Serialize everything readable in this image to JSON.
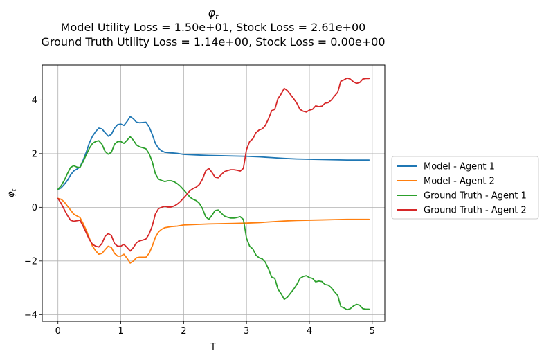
{
  "chart_data": {
    "type": "line",
    "title": "φt",
    "title_symbol": "φ",
    "title_subscript": "t",
    "subtitle_lines": [
      "Model Utility Loss = 1.50e+01, Stock Loss = 2.61e+00",
      "Ground Truth Utility Loss = 1.14e+00, Stock Loss = 0.00e+00"
    ],
    "xlabel": "T",
    "ylabel": "φt",
    "ylabel_symbol": "φ",
    "ylabel_subscript": "t",
    "xlim": [
      -0.25,
      5.2
    ],
    "ylim": [
      -4.25,
      5.3
    ],
    "xticks": [
      0,
      1,
      2,
      3,
      4,
      5
    ],
    "yticks": [
      -4,
      -2,
      0,
      2,
      4
    ],
    "xtick_labels": [
      "0",
      "1",
      "2",
      "3",
      "4",
      "5"
    ],
    "ytick_labels": [
      "−4",
      "−2",
      "0",
      "2",
      "4"
    ],
    "grid": true,
    "legend_placement": "center-right outside",
    "series": [
      {
        "name": "Model - Agent 1",
        "color": "#1f77b4",
        "points": [
          [
            0,
            0.67
          ],
          [
            0.05,
            0.72
          ],
          [
            0.1,
            0.85
          ],
          [
            0.15,
            1.0
          ],
          [
            0.2,
            1.2
          ],
          [
            0.25,
            1.35
          ],
          [
            0.3,
            1.42
          ],
          [
            0.35,
            1.5
          ],
          [
            0.4,
            1.75
          ],
          [
            0.45,
            2.05
          ],
          [
            0.5,
            2.4
          ],
          [
            0.55,
            2.65
          ],
          [
            0.6,
            2.82
          ],
          [
            0.65,
            2.95
          ],
          [
            0.7,
            2.92
          ],
          [
            0.75,
            2.78
          ],
          [
            0.8,
            2.65
          ],
          [
            0.85,
            2.72
          ],
          [
            0.9,
            2.95
          ],
          [
            0.95,
            3.08
          ],
          [
            1.0,
            3.1
          ],
          [
            1.05,
            3.05
          ],
          [
            1.1,
            3.2
          ],
          [
            1.15,
            3.38
          ],
          [
            1.2,
            3.3
          ],
          [
            1.25,
            3.17
          ],
          [
            1.3,
            3.15
          ],
          [
            1.35,
            3.16
          ],
          [
            1.4,
            3.17
          ],
          [
            1.45,
            3.0
          ],
          [
            1.5,
            2.72
          ],
          [
            1.55,
            2.38
          ],
          [
            1.6,
            2.2
          ],
          [
            1.65,
            2.1
          ],
          [
            1.7,
            2.05
          ],
          [
            1.8,
            2.03
          ],
          [
            1.9,
            2.01
          ],
          [
            2.0,
            1.97
          ],
          [
            2.2,
            1.95
          ],
          [
            2.4,
            1.93
          ],
          [
            2.6,
            1.92
          ],
          [
            2.8,
            1.91
          ],
          [
            3.0,
            1.9
          ],
          [
            3.2,
            1.88
          ],
          [
            3.4,
            1.85
          ],
          [
            3.6,
            1.82
          ],
          [
            3.8,
            1.8
          ],
          [
            4.0,
            1.79
          ],
          [
            4.2,
            1.78
          ],
          [
            4.4,
            1.77
          ],
          [
            4.6,
            1.76
          ],
          [
            4.8,
            1.76
          ],
          [
            4.95,
            1.76
          ]
        ]
      },
      {
        "name": "Model - Agent 2",
        "color": "#ff7f0e",
        "points": [
          [
            0,
            0.33
          ],
          [
            0.05,
            0.3
          ],
          [
            0.1,
            0.2
          ],
          [
            0.15,
            0.05
          ],
          [
            0.2,
            -0.1
          ],
          [
            0.25,
            -0.25
          ],
          [
            0.3,
            -0.32
          ],
          [
            0.35,
            -0.38
          ],
          [
            0.4,
            -0.6
          ],
          [
            0.45,
            -0.85
          ],
          [
            0.5,
            -1.15
          ],
          [
            0.55,
            -1.45
          ],
          [
            0.6,
            -1.62
          ],
          [
            0.65,
            -1.75
          ],
          [
            0.7,
            -1.72
          ],
          [
            0.75,
            -1.58
          ],
          [
            0.8,
            -1.45
          ],
          [
            0.85,
            -1.5
          ],
          [
            0.9,
            -1.72
          ],
          [
            0.95,
            -1.82
          ],
          [
            1.0,
            -1.82
          ],
          [
            1.05,
            -1.75
          ],
          [
            1.1,
            -1.9
          ],
          [
            1.15,
            -2.08
          ],
          [
            1.2,
            -2.0
          ],
          [
            1.25,
            -1.88
          ],
          [
            1.3,
            -1.86
          ],
          [
            1.35,
            -1.86
          ],
          [
            1.4,
            -1.86
          ],
          [
            1.45,
            -1.72
          ],
          [
            1.5,
            -1.45
          ],
          [
            1.55,
            -1.12
          ],
          [
            1.6,
            -0.92
          ],
          [
            1.65,
            -0.82
          ],
          [
            1.7,
            -0.76
          ],
          [
            1.8,
            -0.72
          ],
          [
            1.9,
            -0.7
          ],
          [
            2.0,
            -0.66
          ],
          [
            2.2,
            -0.64
          ],
          [
            2.4,
            -0.62
          ],
          [
            2.6,
            -0.61
          ],
          [
            2.8,
            -0.6
          ],
          [
            3.0,
            -0.59
          ],
          [
            3.2,
            -0.57
          ],
          [
            3.4,
            -0.54
          ],
          [
            3.6,
            -0.51
          ],
          [
            3.8,
            -0.49
          ],
          [
            4.0,
            -0.48
          ],
          [
            4.2,
            -0.47
          ],
          [
            4.4,
            -0.46
          ],
          [
            4.6,
            -0.45
          ],
          [
            4.8,
            -0.45
          ],
          [
            4.95,
            -0.45
          ]
        ]
      },
      {
        "name": "Ground Truth - Agent 1",
        "color": "#2ca02c",
        "points": [
          [
            0,
            0.67
          ],
          [
            0.05,
            0.8
          ],
          [
            0.1,
            1.0
          ],
          [
            0.15,
            1.25
          ],
          [
            0.2,
            1.48
          ],
          [
            0.25,
            1.55
          ],
          [
            0.3,
            1.5
          ],
          [
            0.35,
            1.48
          ],
          [
            0.4,
            1.7
          ],
          [
            0.45,
            1.95
          ],
          [
            0.5,
            2.2
          ],
          [
            0.55,
            2.38
          ],
          [
            0.6,
            2.45
          ],
          [
            0.65,
            2.48
          ],
          [
            0.7,
            2.35
          ],
          [
            0.75,
            2.08
          ],
          [
            0.8,
            1.98
          ],
          [
            0.85,
            2.05
          ],
          [
            0.9,
            2.35
          ],
          [
            0.95,
            2.45
          ],
          [
            1.0,
            2.45
          ],
          [
            1.05,
            2.38
          ],
          [
            1.1,
            2.5
          ],
          [
            1.15,
            2.63
          ],
          [
            1.2,
            2.5
          ],
          [
            1.25,
            2.32
          ],
          [
            1.3,
            2.25
          ],
          [
            1.35,
            2.22
          ],
          [
            1.4,
            2.18
          ],
          [
            1.45,
            2.0
          ],
          [
            1.5,
            1.7
          ],
          [
            1.55,
            1.25
          ],
          [
            1.6,
            1.05
          ],
          [
            1.65,
            1.0
          ],
          [
            1.7,
            0.96
          ],
          [
            1.75,
            0.99
          ],
          [
            1.8,
            0.99
          ],
          [
            1.85,
            0.95
          ],
          [
            1.9,
            0.88
          ],
          [
            1.95,
            0.78
          ],
          [
            2.0,
            0.65
          ],
          [
            2.05,
            0.52
          ],
          [
            2.1,
            0.38
          ],
          [
            2.15,
            0.3
          ],
          [
            2.2,
            0.25
          ],
          [
            2.25,
            0.15
          ],
          [
            2.3,
            -0.05
          ],
          [
            2.35,
            -0.35
          ],
          [
            2.4,
            -0.45
          ],
          [
            2.45,
            -0.3
          ],
          [
            2.5,
            -0.12
          ],
          [
            2.55,
            -0.1
          ],
          [
            2.6,
            -0.22
          ],
          [
            2.65,
            -0.33
          ],
          [
            2.7,
            -0.37
          ],
          [
            2.75,
            -0.4
          ],
          [
            2.8,
            -0.4
          ],
          [
            2.85,
            -0.38
          ],
          [
            2.9,
            -0.35
          ],
          [
            2.95,
            -0.45
          ],
          [
            3.0,
            -1.15
          ],
          [
            3.05,
            -1.45
          ],
          [
            3.1,
            -1.55
          ],
          [
            3.15,
            -1.78
          ],
          [
            3.2,
            -1.88
          ],
          [
            3.25,
            -1.92
          ],
          [
            3.3,
            -2.05
          ],
          [
            3.35,
            -2.3
          ],
          [
            3.4,
            -2.6
          ],
          [
            3.45,
            -2.65
          ],
          [
            3.5,
            -3.05
          ],
          [
            3.55,
            -3.22
          ],
          [
            3.6,
            -3.43
          ],
          [
            3.65,
            -3.35
          ],
          [
            3.7,
            -3.2
          ],
          [
            3.75,
            -3.05
          ],
          [
            3.8,
            -2.88
          ],
          [
            3.85,
            -2.65
          ],
          [
            3.9,
            -2.58
          ],
          [
            3.95,
            -2.55
          ],
          [
            4.0,
            -2.62
          ],
          [
            4.05,
            -2.65
          ],
          [
            4.1,
            -2.78
          ],
          [
            4.15,
            -2.75
          ],
          [
            4.2,
            -2.77
          ],
          [
            4.25,
            -2.88
          ],
          [
            4.3,
            -2.9
          ],
          [
            4.35,
            -3.0
          ],
          [
            4.4,
            -3.15
          ],
          [
            4.45,
            -3.28
          ],
          [
            4.5,
            -3.7
          ],
          [
            4.55,
            -3.75
          ],
          [
            4.6,
            -3.82
          ],
          [
            4.65,
            -3.78
          ],
          [
            4.7,
            -3.68
          ],
          [
            4.75,
            -3.62
          ],
          [
            4.8,
            -3.65
          ],
          [
            4.85,
            -3.78
          ],
          [
            4.9,
            -3.8
          ],
          [
            4.95,
            -3.8
          ]
        ]
      },
      {
        "name": "Ground Truth - Agent 2",
        "color": "#d62728",
        "points": [
          [
            0,
            0.33
          ],
          [
            0.05,
            0.15
          ],
          [
            0.1,
            -0.08
          ],
          [
            0.15,
            -0.3
          ],
          [
            0.2,
            -0.48
          ],
          [
            0.25,
            -0.52
          ],
          [
            0.3,
            -0.5
          ],
          [
            0.35,
            -0.48
          ],
          [
            0.4,
            -0.7
          ],
          [
            0.45,
            -0.95
          ],
          [
            0.5,
            -1.2
          ],
          [
            0.55,
            -1.38
          ],
          [
            0.6,
            -1.45
          ],
          [
            0.65,
            -1.48
          ],
          [
            0.7,
            -1.35
          ],
          [
            0.75,
            -1.08
          ],
          [
            0.8,
            -0.98
          ],
          [
            0.85,
            -1.05
          ],
          [
            0.9,
            -1.35
          ],
          [
            0.95,
            -1.45
          ],
          [
            1.0,
            -1.45
          ],
          [
            1.05,
            -1.38
          ],
          [
            1.1,
            -1.5
          ],
          [
            1.15,
            -1.63
          ],
          [
            1.2,
            -1.5
          ],
          [
            1.25,
            -1.32
          ],
          [
            1.3,
            -1.25
          ],
          [
            1.35,
            -1.22
          ],
          [
            1.4,
            -1.18
          ],
          [
            1.45,
            -1.0
          ],
          [
            1.5,
            -0.7
          ],
          [
            1.55,
            -0.25
          ],
          [
            1.6,
            -0.05
          ],
          [
            1.65,
            0.0
          ],
          [
            1.7,
            0.04
          ],
          [
            1.75,
            0.01
          ],
          [
            1.8,
            0.01
          ],
          [
            1.85,
            0.05
          ],
          [
            1.9,
            0.12
          ],
          [
            1.95,
            0.22
          ],
          [
            2.0,
            0.35
          ],
          [
            2.05,
            0.48
          ],
          [
            2.1,
            0.62
          ],
          [
            2.15,
            0.7
          ],
          [
            2.2,
            0.75
          ],
          [
            2.25,
            0.85
          ],
          [
            2.3,
            1.05
          ],
          [
            2.35,
            1.35
          ],
          [
            2.4,
            1.45
          ],
          [
            2.45,
            1.3
          ],
          [
            2.5,
            1.12
          ],
          [
            2.55,
            1.1
          ],
          [
            2.6,
            1.22
          ],
          [
            2.65,
            1.33
          ],
          [
            2.7,
            1.37
          ],
          [
            2.75,
            1.4
          ],
          [
            2.8,
            1.4
          ],
          [
            2.85,
            1.38
          ],
          [
            2.9,
            1.35
          ],
          [
            2.95,
            1.45
          ],
          [
            3.0,
            2.15
          ],
          [
            3.05,
            2.45
          ],
          [
            3.1,
            2.55
          ],
          [
            3.15,
            2.78
          ],
          [
            3.2,
            2.88
          ],
          [
            3.25,
            2.92
          ],
          [
            3.3,
            3.05
          ],
          [
            3.35,
            3.3
          ],
          [
            3.4,
            3.6
          ],
          [
            3.45,
            3.65
          ],
          [
            3.5,
            4.05
          ],
          [
            3.55,
            4.22
          ],
          [
            3.6,
            4.43
          ],
          [
            3.65,
            4.35
          ],
          [
            3.7,
            4.2
          ],
          [
            3.75,
            4.05
          ],
          [
            3.8,
            3.88
          ],
          [
            3.85,
            3.65
          ],
          [
            3.9,
            3.58
          ],
          [
            3.95,
            3.55
          ],
          [
            4.0,
            3.62
          ],
          [
            4.05,
            3.65
          ],
          [
            4.1,
            3.78
          ],
          [
            4.15,
            3.75
          ],
          [
            4.2,
            3.77
          ],
          [
            4.25,
            3.88
          ],
          [
            4.3,
            3.9
          ],
          [
            4.35,
            4.0
          ],
          [
            4.4,
            4.15
          ],
          [
            4.45,
            4.28
          ],
          [
            4.5,
            4.7
          ],
          [
            4.55,
            4.75
          ],
          [
            4.6,
            4.82
          ],
          [
            4.65,
            4.78
          ],
          [
            4.7,
            4.68
          ],
          [
            4.75,
            4.62
          ],
          [
            4.8,
            4.65
          ],
          [
            4.85,
            4.78
          ],
          [
            4.9,
            4.8
          ],
          [
            4.95,
            4.8
          ]
        ]
      }
    ]
  }
}
